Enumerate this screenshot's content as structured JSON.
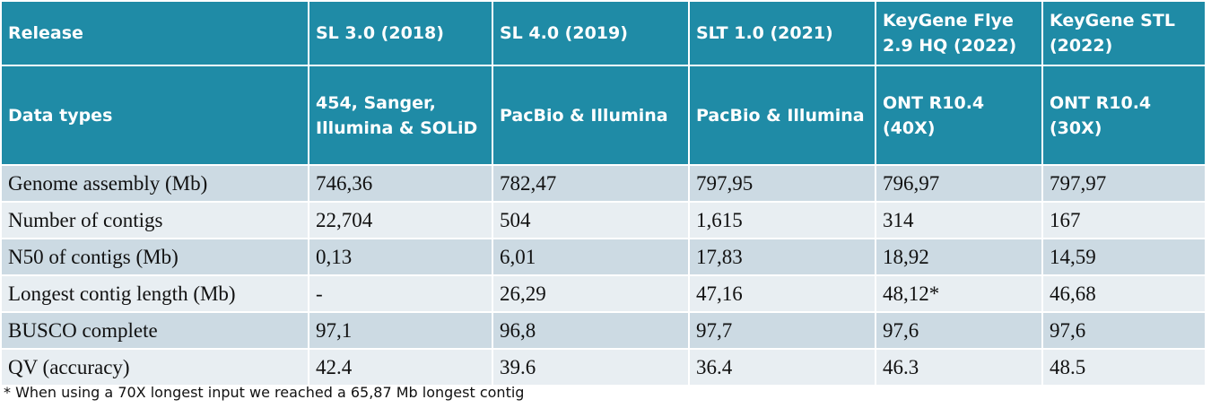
{
  "table": {
    "header": {
      "release_label": "Release",
      "releases": [
        "SL 3.0 (2018)",
        "SL 4.0 (2019)",
        "SLT 1.0 (2021)",
        "KeyGene Flye 2.9 HQ (2022)",
        "KeyGene STL (2022)"
      ],
      "data_types_label": "Data types",
      "data_types": [
        "454, Sanger, Illumina & SOLiD",
        "PacBio & Illumina",
        "PacBio & Illumina",
        "ONT R10.4 (40X)",
        "ONT R10.4 (30X)"
      ]
    },
    "rows": [
      {
        "label": "Genome assembly (Mb)",
        "values": [
          "746,36",
          "782,47",
          "797,95",
          "796,97",
          "797,97"
        ]
      },
      {
        "label": "Number of contigs",
        "values": [
          "22,704",
          "504",
          "1,615",
          "314",
          "167"
        ]
      },
      {
        "label": "N50 of contigs (Mb)",
        "values": [
          "0,13",
          "6,01",
          "17,83",
          "18,92",
          "14,59"
        ]
      },
      {
        "label": "Longest contig length (Mb)",
        "values": [
          "-",
          "26,29",
          "47,16",
          "48,12*",
          "46,68"
        ]
      },
      {
        "label": "BUSCO complete",
        "values": [
          "97,1",
          "96,8",
          "97,7",
          "97,6",
          "97,6"
        ]
      },
      {
        "label": "QV (accuracy)",
        "values": [
          "42.4",
          "39.6",
          "36.4",
          "46.3",
          "48.5"
        ]
      }
    ]
  },
  "footnote": "* When using a 70X longest input we reached a 65,87 Mb longest contig"
}
